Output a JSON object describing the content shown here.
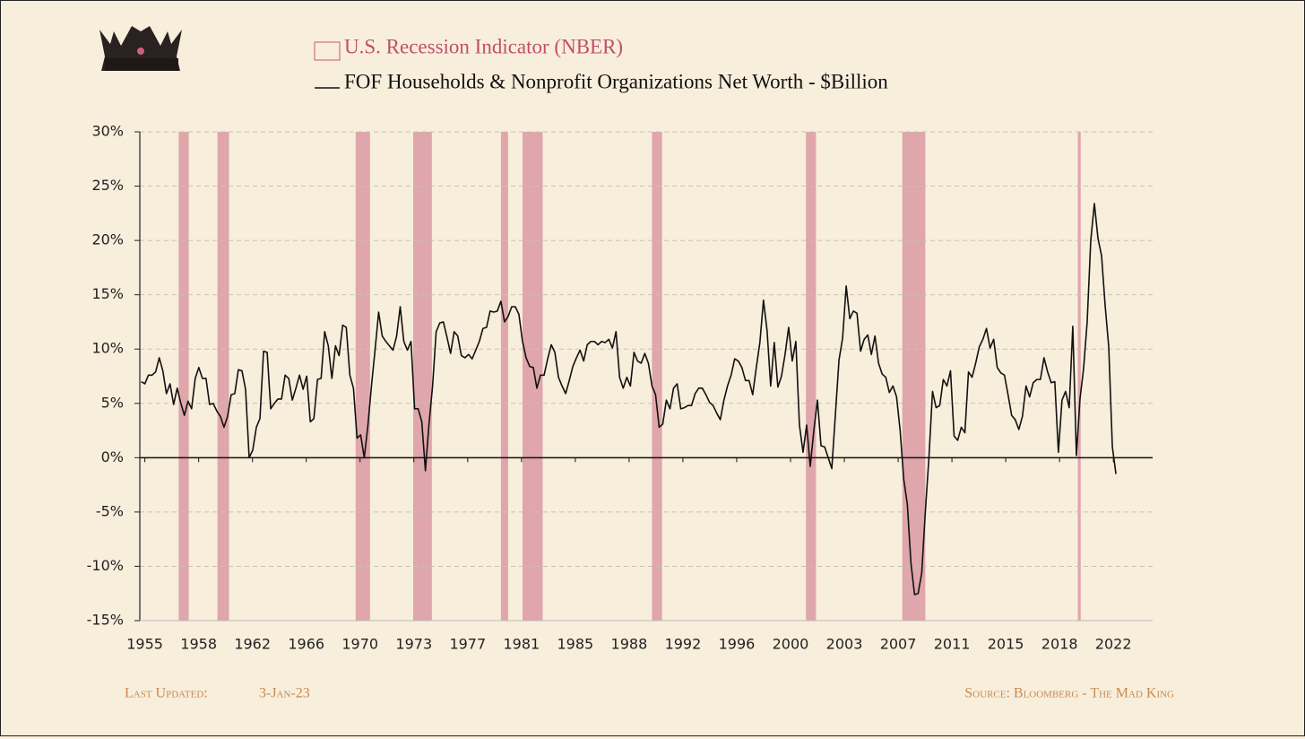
{
  "chart_data": {
    "type": "line",
    "recessions": {
      "name": "U.S. Recession Indicator (NBER)",
      "color": "#dfa6ab",
      "ranges": [
        [
          1957.6,
          1958.3
        ],
        [
          1960.3,
          1961.1
        ],
        [
          1969.9,
          1970.9
        ],
        [
          1973.9,
          1975.2
        ],
        [
          1980.0,
          1980.5
        ],
        [
          1981.5,
          1982.9
        ],
        [
          1990.5,
          1991.2
        ],
        [
          2001.2,
          2001.9
        ],
        [
          2007.9,
          2009.5
        ],
        [
          2020.1,
          2020.3
        ]
      ]
    },
    "series": [
      {
        "name": "FOF Households & Nonprofit Organizations Net Worth - $Billion",
        "color": "#111111",
        "values": [
          7.0,
          6.8,
          7.6,
          7.6,
          7.9,
          9.2,
          8.0,
          5.9,
          6.8,
          4.9,
          6.4,
          5.0,
          3.9,
          5.2,
          4.5,
          7.3,
          8.3,
          7.3,
          7.3,
          4.9,
          5.0,
          4.3,
          3.8,
          2.8,
          3.8,
          5.8,
          5.9,
          8.1,
          8.0,
          6.3,
          0.0,
          0.7,
          2.8,
          3.6,
          9.8,
          9.7,
          4.5,
          5.0,
          5.4,
          5.4,
          7.6,
          7.3,
          5.3,
          6.4,
          7.6,
          6.3,
          7.5,
          3.3,
          3.6,
          7.2,
          7.3,
          11.6,
          10.3,
          7.3,
          10.3,
          9.4,
          12.2,
          12.0,
          7.6,
          6.4,
          1.8,
          2.1,
          0.0,
          2.9,
          6.6,
          9.9,
          13.4,
          11.2,
          10.7,
          10.3,
          9.9,
          11.2,
          13.9,
          10.7,
          9.9,
          10.7,
          4.5,
          4.5,
          3.3,
          -1.2,
          3.1,
          6.6,
          11.6,
          12.4,
          12.5,
          11.1,
          9.6,
          11.6,
          11.2,
          9.4,
          9.2,
          9.5,
          9.1,
          9.9,
          10.7,
          11.9,
          12.0,
          13.5,
          13.4,
          13.5,
          14.4,
          12.5,
          13.0,
          13.9,
          13.9,
          13.2,
          10.7,
          9.2,
          8.4,
          8.3,
          6.4,
          7.6,
          7.6,
          9.1,
          10.4,
          9.7,
          7.4,
          6.6,
          5.9,
          7.1,
          8.4,
          9.2,
          9.9,
          8.9,
          10.4,
          10.7,
          10.7,
          10.4,
          10.7,
          10.6,
          10.9,
          10.1,
          11.6,
          7.4,
          6.4,
          7.4,
          6.6,
          9.7,
          8.9,
          8.7,
          9.6,
          8.7,
          6.6,
          5.8,
          2.8,
          3.1,
          5.3,
          4.5,
          6.4,
          6.8,
          4.5,
          4.6,
          4.8,
          4.8,
          5.9,
          6.4,
          6.4,
          5.8,
          5.1,
          4.8,
          4.1,
          3.5,
          5.3,
          6.6,
          7.6,
          9.1,
          8.9,
          8.3,
          7.1,
          7.1,
          5.8,
          8.3,
          10.6,
          14.5,
          11.7,
          6.6,
          10.6,
          6.5,
          7.5,
          9.5,
          12.0,
          8.9,
          10.7,
          3.0,
          0.5,
          3.0,
          -0.8,
          2.5,
          5.3,
          1.1,
          1.0,
          0.0,
          -1.0,
          4.0,
          9.0,
          11.0,
          15.8,
          12.8,
          13.5,
          13.3,
          9.8,
          10.9,
          11.3,
          9.5,
          11.2,
          8.7,
          7.7,
          7.4,
          6.0,
          6.6,
          5.6,
          2.5,
          -2.0,
          -4.3,
          -9.7,
          -12.6,
          -12.5,
          -10.6,
          -5.0,
          0.0,
          6.1,
          4.6,
          4.8,
          7.2,
          6.6,
          8.0,
          2.0,
          1.6,
          2.8,
          2.3,
          7.9,
          7.4,
          8.7,
          10.2,
          10.9,
          11.9,
          10.1,
          10.9,
          8.3,
          7.8,
          7.6,
          5.8,
          3.9,
          3.5,
          2.6,
          3.8,
          6.6,
          5.6,
          6.9,
          7.2,
          7.2,
          9.2,
          7.9,
          6.9,
          7.0,
          0.5,
          5.3,
          6.1,
          4.6,
          12.1,
          0.2,
          5.4,
          8.2,
          12.5,
          20.0,
          23.4,
          20.2,
          18.6,
          14.0,
          10.2,
          1.0,
          -1.5
        ]
      }
    ],
    "x": [
      1955,
      1955.25,
      1955.5,
      1955.75,
      1956,
      1956.25,
      1956.5,
      1956.75,
      1957,
      1957.25,
      1957.5,
      1957.75,
      1958,
      1958.25,
      1958.5,
      1958.75,
      1959,
      1959.25,
      1959.5,
      1959.75,
      1960,
      1960.25,
      1960.5,
      1960.75,
      1961,
      1961.25,
      1961.5,
      1961.75,
      1962,
      1962.25,
      1962.5,
      1962.75,
      1963,
      1963.25,
      1963.5,
      1963.75,
      1964,
      1964.25,
      1964.5,
      1964.75,
      1965,
      1965.25,
      1965.5,
      1965.75,
      1966,
      1966.25,
      1966.5,
      1966.75,
      1967,
      1967.25,
      1967.5,
      1967.75,
      1968,
      1968.25,
      1968.5,
      1968.75,
      1969,
      1969.25,
      1969.5,
      1969.75,
      1970,
      1970.25,
      1970.5,
      1970.75,
      1971,
      1971.25,
      1971.5,
      1971.75,
      1972,
      1972.25,
      1972.5,
      1972.75,
      1973,
      1973.25,
      1973.5,
      1973.75,
      1974,
      1974.25,
      1974.5,
      1974.75,
      1975,
      1975.25,
      1975.5,
      1975.75,
      1976,
      1976.25,
      1976.5,
      1976.75,
      1977,
      1977.25,
      1977.5,
      1977.75,
      1978,
      1978.25,
      1978.5,
      1978.75,
      1979,
      1979.25,
      1979.5,
      1979.75,
      1980,
      1980.25,
      1980.5,
      1980.75,
      1981,
      1981.25,
      1981.5,
      1981.75,
      1982,
      1982.25,
      1982.5,
      1982.75,
      1983,
      1983.25,
      1983.5,
      1983.75,
      1984,
      1984.25,
      1984.5,
      1984.75,
      1985,
      1985.25,
      1985.5,
      1985.75,
      1986,
      1986.25,
      1986.5,
      1986.75,
      1987,
      1987.25,
      1987.5,
      1987.75,
      1988,
      1988.25,
      1988.5,
      1988.75,
      1989,
      1989.25,
      1989.5,
      1989.75,
      1990,
      1990.25,
      1990.5,
      1990.75,
      1991,
      1991.25,
      1991.5,
      1991.75,
      1992,
      1992.25,
      1992.5,
      1992.75,
      1993,
      1993.25,
      1993.5,
      1993.75,
      1994,
      1994.25,
      1994.5,
      1994.75,
      1995,
      1995.25,
      1995.5,
      1995.75,
      1996,
      1996.25,
      1996.5,
      1996.75,
      1997,
      1997.25,
      1997.5,
      1997.75,
      1998,
      1998.25,
      1998.5,
      1998.75,
      1999,
      1999.25,
      1999.5,
      1999.75,
      2000,
      2000.25,
      2000.5,
      2000.75,
      2001,
      2001.25,
      2001.5,
      2001.75,
      2002,
      2002.25,
      2002.5,
      2002.75,
      2003,
      2003.25,
      2003.5,
      2003.75,
      2004,
      2004.25,
      2004.5,
      2004.75,
      2005,
      2005.25,
      2005.5,
      2005.75,
      2006,
      2006.25,
      2006.5,
      2006.75,
      2007,
      2007.25,
      2007.5,
      2007.75,
      2008,
      2008.25,
      2008.5,
      2008.75,
      2009,
      2009.25,
      2009.5,
      2009.75,
      2010,
      2010.25,
      2010.5,
      2010.75,
      2011,
      2011.25,
      2011.5,
      2011.75,
      2012,
      2012.25,
      2012.5,
      2012.75,
      2013,
      2013.25,
      2013.5,
      2013.75,
      2014,
      2014.25,
      2014.5,
      2014.75,
      2015,
      2015.25,
      2015.5,
      2015.75,
      2016,
      2016.25,
      2016.5,
      2016.75,
      2017,
      2017.25,
      2017.5,
      2017.75,
      2018,
      2018.25,
      2018.5,
      2018.75,
      2019,
      2019.25,
      2019.5,
      2019.75,
      2020,
      2020.25,
      2020.5,
      2020.75,
      2021,
      2021.25,
      2021.5,
      2021.75,
      2022,
      2022.25,
      2022.5,
      2022.75
    ],
    "xlim": [
      1954.9,
      2025.3
    ],
    "xticks": [
      {
        "value": 1955.25,
        "label": "1955"
      },
      {
        "value": 1958.99,
        "label": "1958"
      },
      {
        "value": 1962.73,
        "label": "1962"
      },
      {
        "value": 1966.47,
        "label": "1966"
      },
      {
        "value": 1970.21,
        "label": "1970"
      },
      {
        "value": 1973.95,
        "label": "1973"
      },
      {
        "value": 1977.69,
        "label": "1977"
      },
      {
        "value": 1981.43,
        "label": "1981"
      },
      {
        "value": 1985.17,
        "label": "1985"
      },
      {
        "value": 1988.91,
        "label": "1988"
      },
      {
        "value": 1992.65,
        "label": "1992"
      },
      {
        "value": 1996.39,
        "label": "1996"
      },
      {
        "value": 2000.13,
        "label": "2000"
      },
      {
        "value": 2003.87,
        "label": "2003"
      },
      {
        "value": 2007.61,
        "label": "2007"
      },
      {
        "value": 2011.35,
        "label": "2011"
      },
      {
        "value": 2015.09,
        "label": "2015"
      },
      {
        "value": 2018.83,
        "label": "2018"
      },
      {
        "value": 2022.57,
        "label": "2022"
      }
    ],
    "ylim": [
      -15,
      30
    ],
    "yticks": [
      {
        "value": -15,
        "label": "-15%"
      },
      {
        "value": -10,
        "label": "-10%"
      },
      {
        "value": -5,
        "label": "-5%"
      },
      {
        "value": 0,
        "label": "0%"
      },
      {
        "value": 5,
        "label": "5%"
      },
      {
        "value": 10,
        "label": "10%"
      },
      {
        "value": 15,
        "label": "15%"
      },
      {
        "value": 20,
        "label": "20%"
      },
      {
        "value": 25,
        "label": "25%"
      },
      {
        "value": 30,
        "label": "30%"
      }
    ],
    "grid": true
  },
  "footer": {
    "updated_label": "Last Updated:",
    "updated": "3-Jan-23",
    "source": "Source: Bloomberg - The Mad King"
  }
}
